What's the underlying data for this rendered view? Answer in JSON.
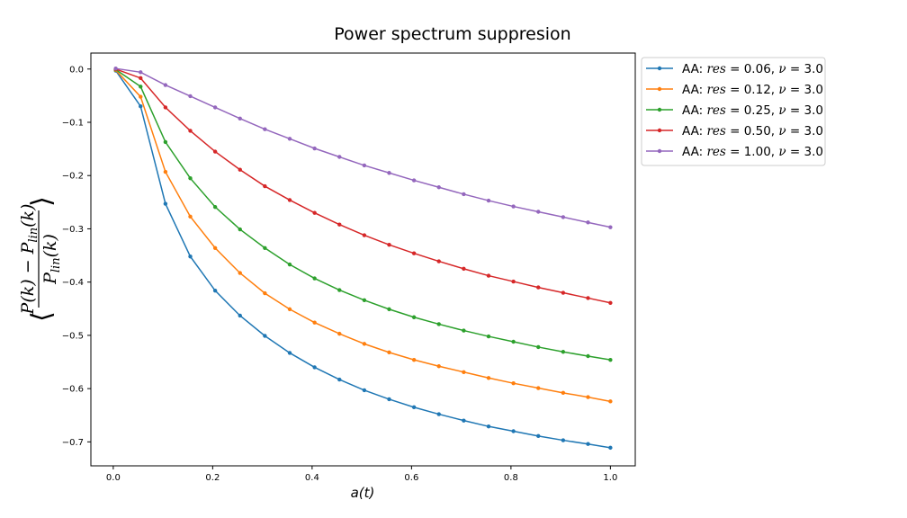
{
  "chart_data": {
    "type": "line",
    "title": "Power spectrum suppresion",
    "xlabel": "a(t)",
    "ylabel": {
      "numerator": "P(k) − P",
      "numerator_sub": "lin",
      "numerator_tail": "(k)",
      "denominator": "P",
      "denominator_sub": "lin",
      "denominator_tail": "(k)",
      "open_bracket": "⟨",
      "close_bracket": "⟩"
    },
    "xlim": [
      -0.045,
      1.05
    ],
    "ylim": [
      -0.745,
      0.03
    ],
    "xticks": [
      0.0,
      0.2,
      0.4,
      0.6,
      0.8,
      1.0
    ],
    "xtick_labels": [
      "0.0",
      "0.2",
      "0.4",
      "0.6",
      "0.8",
      "1.0"
    ],
    "yticks": [
      0.0,
      -0.1,
      -0.2,
      -0.3,
      -0.4,
      -0.5,
      -0.6,
      -0.7
    ],
    "ytick_labels": [
      "0.0",
      "−0.1",
      "−0.2",
      "−0.3",
      "−0.4",
      "−0.5",
      "−0.6",
      "−0.7"
    ],
    "grid": false,
    "legend_position": "outside-right-top",
    "x": [
      0.005,
      0.055,
      0.105,
      0.155,
      0.205,
      0.255,
      0.305,
      0.355,
      0.405,
      0.455,
      0.505,
      0.555,
      0.605,
      0.655,
      0.705,
      0.755,
      0.805,
      0.855,
      0.905,
      0.955,
      1.0
    ],
    "series": [
      {
        "name": "AA: res = 0.06, ν = 3.0",
        "legend_prefix": "AA: ",
        "legend_res": "0.06",
        "legend_nu": "3.0",
        "color": "#1f77b4",
        "values": [
          -0.003,
          -0.07,
          -0.253,
          -0.352,
          -0.416,
          -0.463,
          -0.501,
          -0.533,
          -0.56,
          -0.583,
          -0.603,
          -0.62,
          -0.635,
          -0.648,
          -0.66,
          -0.671,
          -0.68,
          -0.689,
          -0.697,
          -0.704,
          -0.711
        ]
      },
      {
        "name": "AA: res = 0.12, ν = 3.0",
        "legend_prefix": "AA: ",
        "legend_res": "0.12",
        "legend_nu": "3.0",
        "color": "#ff7f0e",
        "values": [
          -0.002,
          -0.052,
          -0.193,
          -0.277,
          -0.336,
          -0.383,
          -0.421,
          -0.451,
          -0.476,
          -0.497,
          -0.516,
          -0.532,
          -0.546,
          -0.558,
          -0.569,
          -0.58,
          -0.59,
          -0.599,
          -0.608,
          -0.616,
          -0.624
        ]
      },
      {
        "name": "AA: res = 0.25, ν = 3.0",
        "legend_prefix": "AA: ",
        "legend_res": "0.25",
        "legend_nu": "3.0",
        "color": "#2ca02c",
        "values": [
          -0.001,
          -0.033,
          -0.137,
          -0.205,
          -0.259,
          -0.301,
          -0.336,
          -0.367,
          -0.393,
          -0.415,
          -0.434,
          -0.451,
          -0.466,
          -0.479,
          -0.491,
          -0.502,
          -0.512,
          -0.522,
          -0.531,
          -0.539,
          -0.546
        ]
      },
      {
        "name": "AA: res = 0.50, ν = 3.0",
        "legend_prefix": "AA: ",
        "legend_res": "0.50",
        "legend_nu": "3.0",
        "color": "#d62728",
        "values": [
          0.0,
          -0.017,
          -0.072,
          -0.116,
          -0.155,
          -0.189,
          -0.22,
          -0.246,
          -0.27,
          -0.292,
          -0.312,
          -0.33,
          -0.346,
          -0.361,
          -0.375,
          -0.388,
          -0.399,
          -0.41,
          -0.42,
          -0.43,
          -0.439
        ]
      },
      {
        "name": "AA: res = 1.00, ν = 3.0",
        "legend_prefix": "AA: ",
        "legend_res": "1.00",
        "legend_nu": "3.0",
        "color": "#9467bd",
        "values": [
          0.001,
          -0.006,
          -0.03,
          -0.051,
          -0.072,
          -0.093,
          -0.113,
          -0.131,
          -0.149,
          -0.165,
          -0.181,
          -0.195,
          -0.209,
          -0.222,
          -0.235,
          -0.247,
          -0.258,
          -0.268,
          -0.278,
          -0.288,
          -0.297
        ]
      }
    ]
  }
}
